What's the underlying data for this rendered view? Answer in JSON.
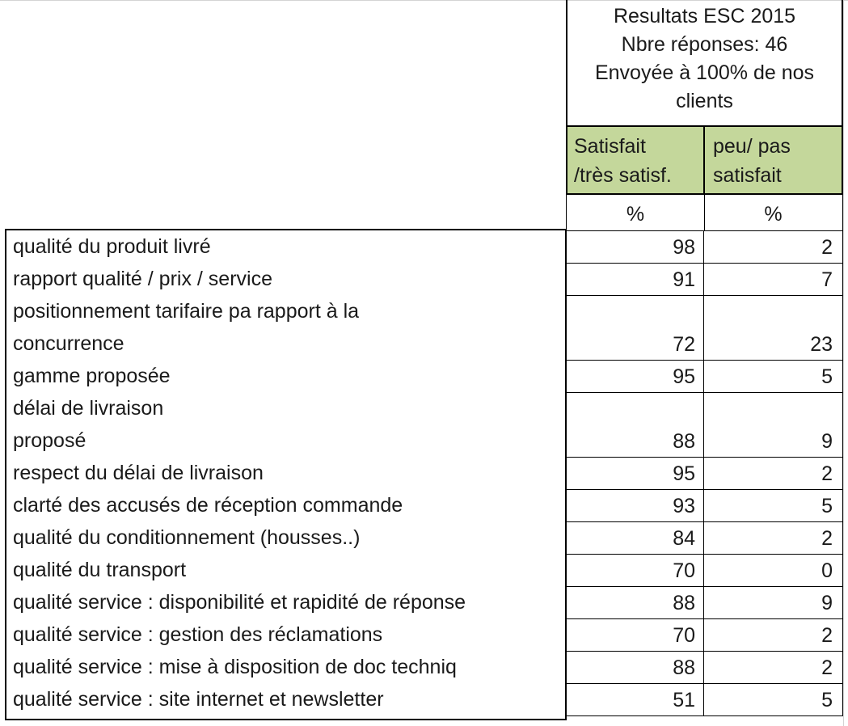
{
  "header": {
    "title": "Resultats ESC 2015",
    "responses": "Nbre réponses: 46",
    "sent_line1": "Envoyée à 100% de nos",
    "sent_line2": "clients"
  },
  "columns": [
    {
      "line1": "Satisfait",
      "line2": "/très satisf.",
      "unit": "%"
    },
    {
      "line1": "peu/ pas",
      "line2": "satisfait",
      "unit": "%"
    }
  ],
  "rows": [
    {
      "label": "qualité du produit livré",
      "satisfied": "98",
      "unsatisfied": "2"
    },
    {
      "label": "rapport qualité / prix / service",
      "satisfied": "91",
      "unsatisfied": "7"
    },
    {
      "label": "positionnement tarifaire pa rapport à la",
      "label2": "concurrence",
      "satisfied": "72",
      "unsatisfied": "23"
    },
    {
      "label": "gamme proposée",
      "satisfied": "95",
      "unsatisfied": "5"
    },
    {
      "label": "délai de livraison",
      "label2": "proposé",
      "satisfied": "88",
      "unsatisfied": "9"
    },
    {
      "label": "respect du délai de livraison",
      "satisfied": "95",
      "unsatisfied": "2"
    },
    {
      "label": "clarté des accusés de réception commande",
      "satisfied": "93",
      "unsatisfied": "5"
    },
    {
      "label": "qualité du conditionnement (housses..)",
      "satisfied": "84",
      "unsatisfied": "2"
    },
    {
      "label": "qualité du transport",
      "satisfied": "70",
      "unsatisfied": "0"
    },
    {
      "label": "qualité service : disponibilité et rapidité de réponse",
      "satisfied": "88",
      "unsatisfied": "9"
    },
    {
      "label": "qualité service : gestion des réclamations",
      "satisfied": "70",
      "unsatisfied": "2"
    },
    {
      "label": "qualité service : mise à disposition de doc techniq",
      "satisfied": "88",
      "unsatisfied": "2"
    },
    {
      "label": "qualité service : site internet et newsletter",
      "satisfied": "51",
      "unsatisfied": "5"
    }
  ]
}
